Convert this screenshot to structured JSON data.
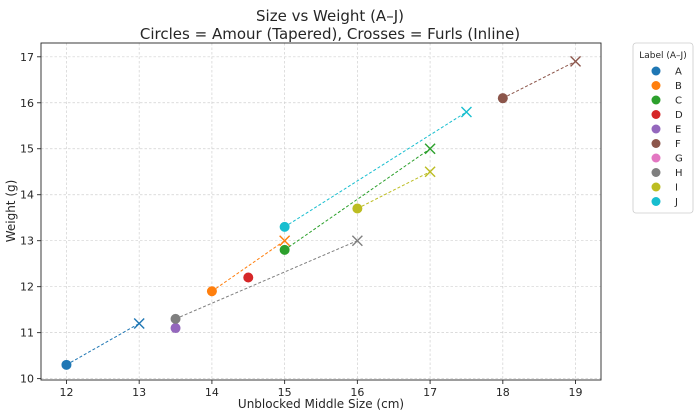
{
  "chart_data": {
    "type": "scatter",
    "title": "Size vs Weight (A–J)",
    "subtitle": "Circles = Amour (Tapered), Crosses = Furls (Inline)",
    "xlabel": "Unblocked Middle Size (cm)",
    "ylabel": "Weight (g)",
    "xlim": [
      11.65,
      19.35
    ],
    "ylim": [
      9.97,
      17.3
    ],
    "xticks": [
      12,
      13,
      14,
      15,
      16,
      17,
      18,
      19
    ],
    "yticks": [
      10,
      11,
      12,
      13,
      14,
      15,
      16,
      17
    ],
    "grid": true,
    "legend": {
      "title": "Label (A–J)",
      "placement": "outside-right"
    },
    "series": [
      {
        "name": "A",
        "color": "#1f77b4",
        "circle": {
          "x": 12,
          "y": 10.3
        },
        "cross": {
          "x": 13,
          "y": 11.2
        }
      },
      {
        "name": "B",
        "color": "#ff7f0e",
        "circle": {
          "x": 14,
          "y": 11.9
        },
        "cross": {
          "x": 15,
          "y": 13.0
        }
      },
      {
        "name": "C",
        "color": "#2ca02c",
        "circle": {
          "x": 15,
          "y": 12.8
        },
        "cross": {
          "x": 17,
          "y": 15.0
        }
      },
      {
        "name": "D",
        "color": "#d62728",
        "circle": {
          "x": 14.5,
          "y": 12.2
        },
        "cross": null
      },
      {
        "name": "E",
        "color": "#9467bd",
        "circle": {
          "x": 13.5,
          "y": 11.1
        },
        "cross": null
      },
      {
        "name": "F",
        "color": "#8c564b",
        "circle": {
          "x": 18,
          "y": 16.1
        },
        "cross": {
          "x": 19,
          "y": 16.9
        }
      },
      {
        "name": "G",
        "color": "#e377c2",
        "circle": null,
        "cross": null
      },
      {
        "name": "H",
        "color": "#7f7f7f",
        "circle": {
          "x": 13.5,
          "y": 11.3
        },
        "cross": {
          "x": 16,
          "y": 13.0
        }
      },
      {
        "name": "I",
        "color": "#bcbd22",
        "circle": {
          "x": 16,
          "y": 13.7
        },
        "cross": {
          "x": 17,
          "y": 14.5
        }
      },
      {
        "name": "J",
        "color": "#17becf",
        "circle": {
          "x": 15,
          "y": 13.3
        },
        "cross": {
          "x": 17.5,
          "y": 15.8
        }
      }
    ]
  }
}
